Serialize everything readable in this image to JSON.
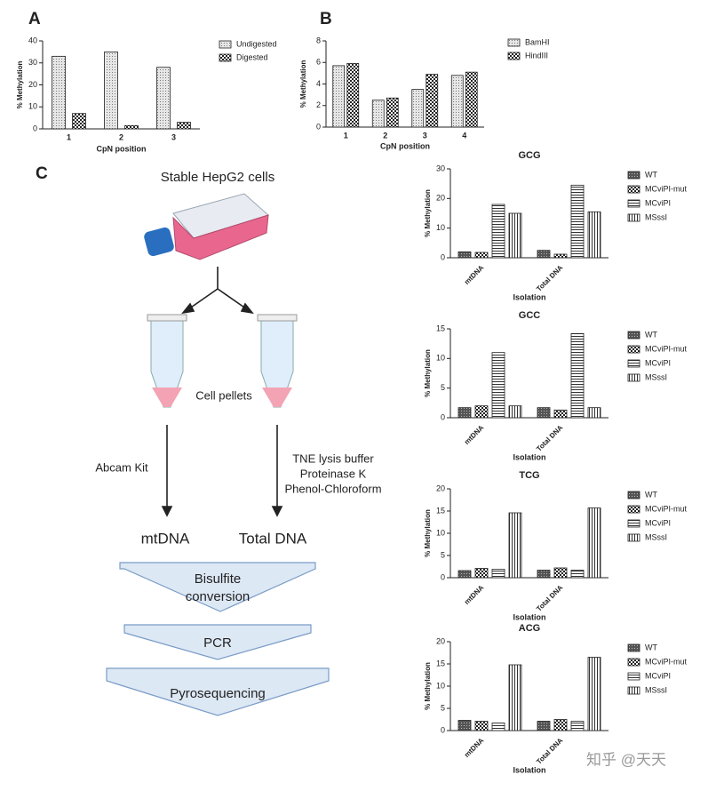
{
  "panels": [
    "A",
    "B",
    "C"
  ],
  "chart_data": [
    {
      "type": "bar",
      "y_label": "% Methylation",
      "x_label": "CpN position",
      "categories": [
        "1",
        "2",
        "3"
      ],
      "series": [
        {
          "name": "Undigested",
          "pattern": "dots",
          "values": [
            33,
            35,
            28
          ]
        },
        {
          "name": "Digested",
          "pattern": "checker",
          "values": [
            7,
            1.5,
            3
          ]
        }
      ],
      "ylim": [
        0,
        40
      ],
      "yticks": [
        0,
        10,
        20,
        30,
        40
      ]
    },
    {
      "type": "bar",
      "y_label": "% Methylation",
      "x_label": "CpN position",
      "categories": [
        "1",
        "2",
        "3",
        "4"
      ],
      "series": [
        {
          "name": "BamHI",
          "pattern": "dots",
          "values": [
            5.7,
            2.5,
            3.5,
            4.8
          ]
        },
        {
          "name": "HindIII",
          "pattern": "checker",
          "values": [
            5.9,
            2.7,
            4.9,
            5.1
          ]
        }
      ],
      "ylim": [
        0,
        8
      ],
      "yticks": [
        0,
        2,
        4,
        6,
        8
      ]
    },
    {
      "type": "bar",
      "title": "GCG",
      "y_label": "% Methylation",
      "x_label": "Isolation",
      "categories": [
        "mtDNA",
        "Total DNA"
      ],
      "series": [
        {
          "name": "WT",
          "pattern": "dark",
          "values": [
            2,
            2.5
          ]
        },
        {
          "name": "MCviPI-mut",
          "pattern": "checker",
          "values": [
            1.8,
            1.2
          ]
        },
        {
          "name": "MCviPI",
          "pattern": "hlines",
          "values": [
            18,
            24.5
          ]
        },
        {
          "name": "MSssI",
          "pattern": "vlines",
          "values": [
            15,
            15.5
          ]
        }
      ],
      "ylim": [
        0,
        30
      ],
      "yticks": [
        0,
        10,
        20,
        30
      ]
    },
    {
      "type": "bar",
      "title": "GCC",
      "y_label": "% Methylation",
      "x_label": "Isolation",
      "categories": [
        "mtDNA",
        "Total DNA"
      ],
      "series": [
        {
          "name": "WT",
          "pattern": "dark",
          "values": [
            1.7,
            1.7
          ]
        },
        {
          "name": "MCviPI-mut",
          "pattern": "checker",
          "values": [
            2,
            1.3
          ]
        },
        {
          "name": "MCviPI",
          "pattern": "hlines",
          "values": [
            11,
            14.2
          ]
        },
        {
          "name": "MSssI",
          "pattern": "vlines",
          "values": [
            2,
            1.7
          ]
        }
      ],
      "ylim": [
        0,
        15
      ],
      "yticks": [
        0,
        5,
        10,
        15
      ]
    },
    {
      "type": "bar",
      "title": "TCG",
      "y_label": "% Methylation",
      "x_label": "Isolation",
      "categories": [
        "mtDNA",
        "Total DNA"
      ],
      "series": [
        {
          "name": "WT",
          "pattern": "dark",
          "values": [
            1.6,
            1.7
          ]
        },
        {
          "name": "MCviPI-mut",
          "pattern": "checker",
          "values": [
            2.1,
            2.2
          ]
        },
        {
          "name": "MCviPI",
          "pattern": "hlines",
          "values": [
            1.9,
            1.7
          ]
        },
        {
          "name": "MSssI",
          "pattern": "vlines",
          "values": [
            14.6,
            15.7
          ]
        }
      ],
      "ylim": [
        0,
        20
      ],
      "yticks": [
        0,
        5,
        10,
        15,
        20
      ]
    },
    {
      "type": "bar",
      "title": "ACG",
      "y_label": "% Methylation",
      "x_label": "Isolation",
      "categories": [
        "mtDNA",
        "Total DNA"
      ],
      "series": [
        {
          "name": "WT",
          "pattern": "dark",
          "values": [
            2.3,
            2.1
          ]
        },
        {
          "name": "MCviPI-mut",
          "pattern": "checker",
          "values": [
            2.1,
            2.5
          ]
        },
        {
          "name": "MCviPI",
          "pattern": "hlines",
          "values": [
            1.7,
            2.1
          ]
        },
        {
          "name": "MSssI",
          "pattern": "vlines",
          "values": [
            14.8,
            16.5
          ]
        }
      ],
      "ylim": [
        0,
        20
      ],
      "yticks": [
        0,
        5,
        10,
        15,
        20
      ]
    }
  ],
  "diagram": {
    "source": "Stable HepG2 cells",
    "pellets": "Cell pellets",
    "kit": "Abcam Kit",
    "protocol": [
      "TNE lysis buffer",
      "Proteinase K",
      "Phenol-Chloroform"
    ],
    "products": [
      "mtDNA",
      "Total DNA"
    ],
    "steps": [
      [
        "Bisulfite",
        "conversion"
      ],
      [
        "PCR"
      ],
      [
        "Pyrosequencing"
      ]
    ]
  },
  "watermark": "知乎 @天天"
}
